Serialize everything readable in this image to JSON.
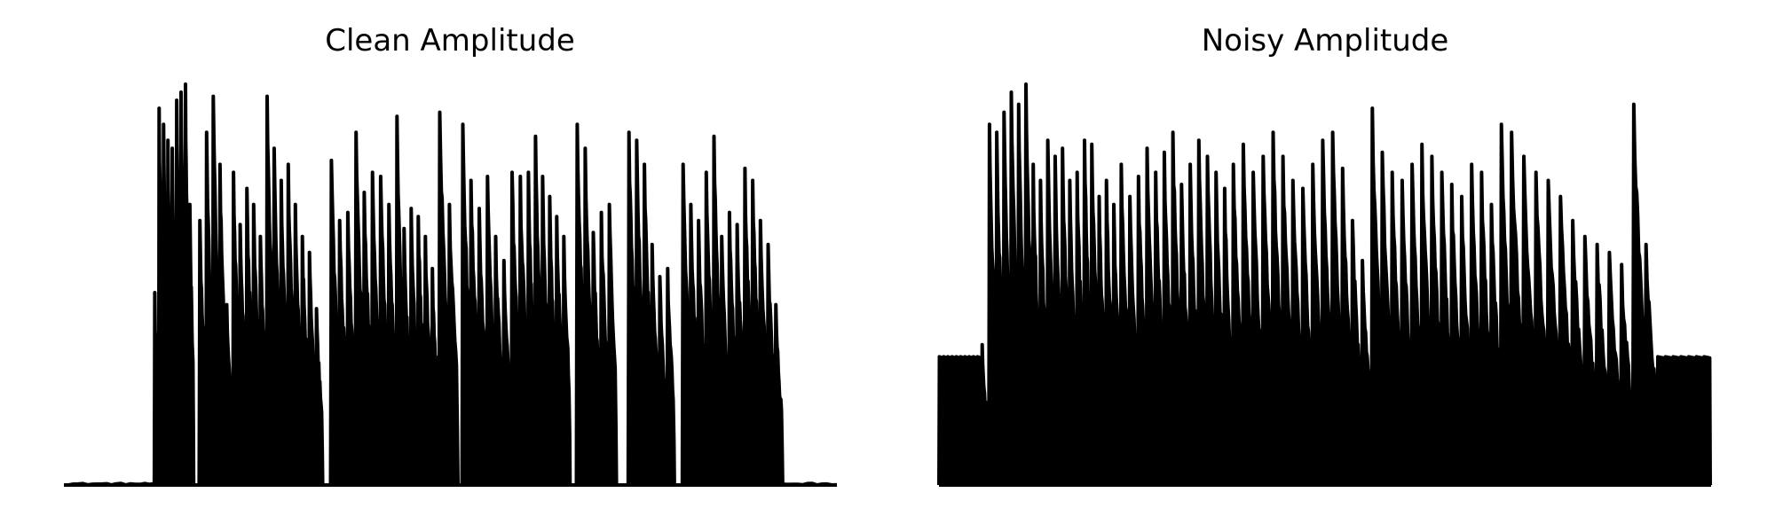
{
  "chart_data": [
    {
      "type": "area",
      "title": "Clean Amplitude",
      "axes_visible": false,
      "grid": false,
      "xlim": [
        0,
        1
      ],
      "ylim": [
        0,
        1
      ],
      "line_color": "#000000",
      "fill_color": "#000000",
      "baseline_noise": 0.004,
      "segments": [
        {
          "start": 0.0,
          "end": 0.117,
          "peaks": [
            0.0
          ]
        },
        {
          "start": 0.117,
          "end": 0.168,
          "peaks": [
            0.48,
            0.94,
            0.9,
            0.86,
            0.84,
            0.96,
            0.98,
            1.0,
            0.7
          ]
        },
        {
          "start": 0.175,
          "end": 0.262,
          "peaks": [
            0.66,
            0.88,
            0.97,
            0.8,
            0.45,
            0.78,
            0.65,
            0.74,
            0.7,
            0.62
          ]
        },
        {
          "start": 0.262,
          "end": 0.335,
          "peaks": [
            0.97,
            0.84,
            0.76,
            0.8,
            0.7,
            0.62,
            0.58,
            0.44
          ]
        },
        {
          "start": 0.345,
          "end": 0.43,
          "peaks": [
            0.81,
            0.66,
            0.68,
            0.88,
            0.73,
            0.78,
            0.77,
            0.7
          ]
        },
        {
          "start": 0.43,
          "end": 0.485,
          "peaks": [
            0.92,
            0.64,
            0.69,
            0.67,
            0.62,
            0.54
          ]
        },
        {
          "start": 0.485,
          "end": 0.51,
          "peaks": [
            0.93,
            0.7
          ]
        },
        {
          "start": 0.515,
          "end": 0.6,
          "peaks": [
            0.9,
            0.76,
            0.69,
            0.77,
            0.62,
            0.56,
            0.78,
            0.77
          ]
        },
        {
          "start": 0.6,
          "end": 0.655,
          "peaks": [
            0.78,
            0.87,
            0.77,
            0.72,
            0.67,
            0.62
          ]
        },
        {
          "start": 0.663,
          "end": 0.715,
          "peaks": [
            0.9,
            0.84,
            0.63,
            0.68,
            0.7
          ]
        },
        {
          "start": 0.73,
          "end": 0.79,
          "peaks": [
            0.88,
            0.86,
            0.8,
            0.6,
            0.52,
            0.54
          ]
        },
        {
          "start": 0.8,
          "end": 0.93,
          "peaks": [
            0.8,
            0.7,
            0.66,
            0.78,
            0.87,
            0.62,
            0.68,
            0.65,
            0.79,
            0.76,
            0.66,
            0.6,
            0.45
          ]
        },
        {
          "start": 0.93,
          "end": 1.0,
          "peaks": [
            0.0
          ]
        }
      ]
    },
    {
      "type": "area",
      "title": "Noisy Amplitude",
      "axes_visible": false,
      "grid": false,
      "xlim": [
        0,
        1
      ],
      "ylim": [
        0,
        1
      ],
      "line_color": "#000000",
      "fill_color": "#000000",
      "floor_level": 0.32,
      "pulse_count_left": 10,
      "pulse_count_right": 7,
      "segments": [
        {
          "start": 0.0,
          "end": 0.055,
          "peaks": [
            0.32,
            0.32,
            0.32,
            0.32,
            0.32,
            0.32,
            0.32,
            0.32,
            0.32,
            0.32
          ]
        },
        {
          "start": 0.055,
          "end": 0.14,
          "peaks": [
            0.35,
            0.9,
            0.88,
            0.93,
            0.98,
            0.95,
            1.0,
            0.8,
            0.76
          ]
        },
        {
          "start": 0.14,
          "end": 0.235,
          "peaks": [
            0.86,
            0.82,
            0.84,
            0.76,
            0.78,
            0.86,
            0.85,
            0.72,
            0.76,
            0.7
          ]
        },
        {
          "start": 0.235,
          "end": 0.38,
          "peaks": [
            0.8,
            0.72,
            0.77,
            0.84,
            0.78,
            0.83,
            0.88,
            0.75,
            0.8,
            0.86,
            0.82,
            0.78,
            0.74
          ]
        },
        {
          "start": 0.38,
          "end": 0.56,
          "peaks": [
            0.8,
            0.85,
            0.78,
            0.82,
            0.88,
            0.82,
            0.76,
            0.74,
            0.8,
            0.86,
            0.88,
            0.79,
            0.66,
            0.56
          ]
        },
        {
          "start": 0.56,
          "end": 0.74,
          "peaks": [
            0.94,
            0.83,
            0.78,
            0.76,
            0.8,
            0.85,
            0.82,
            0.78,
            0.75,
            0.72,
            0.8,
            0.78,
            0.7,
            0.9
          ]
        },
        {
          "start": 0.74,
          "end": 0.93,
          "peaks": [
            0.88,
            0.82,
            0.78,
            0.76,
            0.72,
            0.66,
            0.62,
            0.6,
            0.58,
            0.55,
            0.95,
            0.6
          ]
        },
        {
          "start": 0.93,
          "end": 1.0,
          "peaks": [
            0.32,
            0.32,
            0.32,
            0.32,
            0.32,
            0.32,
            0.32
          ]
        }
      ]
    }
  ]
}
